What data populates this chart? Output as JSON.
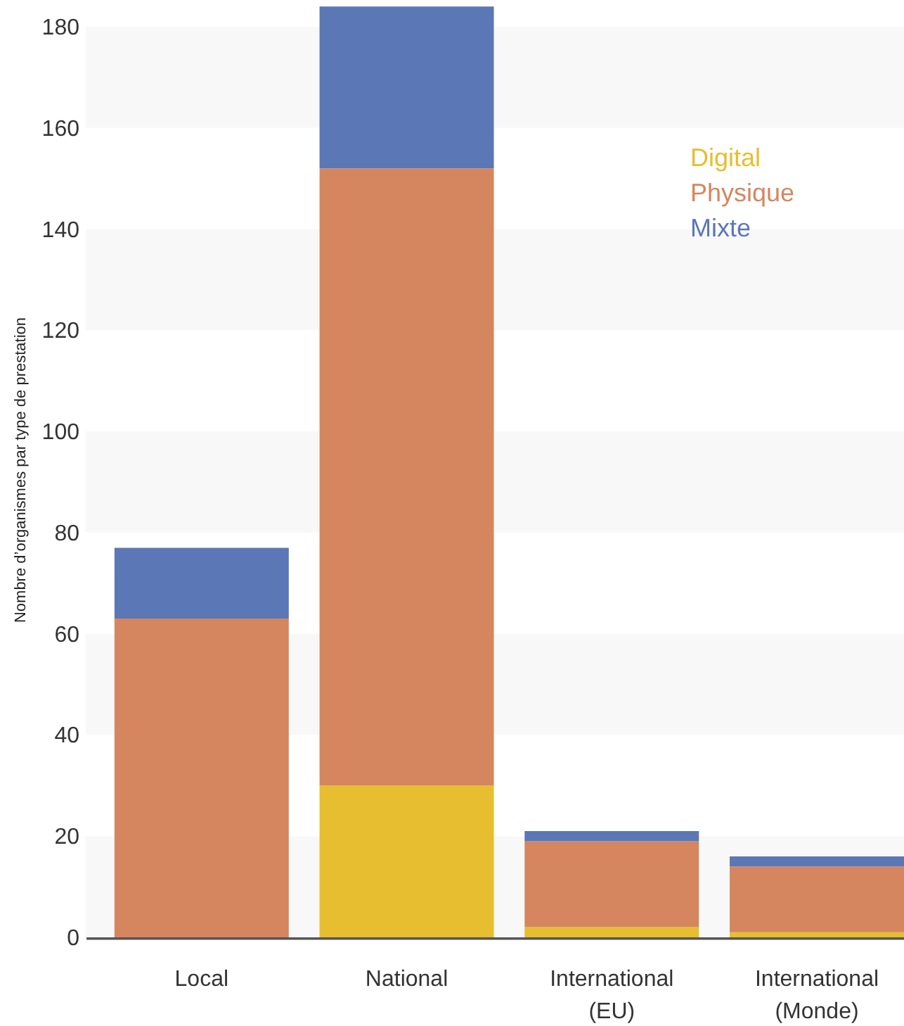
{
  "chart_data": {
    "type": "bar",
    "stacked": true,
    "ylabel": "Nombre d’organismes par type de prestation",
    "categories": [
      "Local",
      "National",
      "International (EU)",
      "International (Monde)"
    ],
    "series": [
      {
        "name": "Digital",
        "color": "#e6be2f",
        "values": [
          0,
          30,
          2,
          1
        ]
      },
      {
        "name": "Physique",
        "color": "#d5865e",
        "values": [
          63,
          122,
          17,
          13
        ]
      },
      {
        "name": "Mixte",
        "color": "#5b77b5",
        "values": [
          14,
          32,
          2,
          2
        ]
      }
    ],
    "ylim": [
      0,
      185
    ],
    "yticks": [
      0,
      20,
      40,
      60,
      80,
      100,
      120,
      140,
      160,
      180
    ],
    "bands": [
      {
        "axis": "y",
        "from": 0,
        "to": 20,
        "color": "#f8f8f8"
      },
      {
        "axis": "y",
        "from": 40,
        "to": 60,
        "color": "#f8f8f8"
      },
      {
        "axis": "y",
        "from": 80,
        "to": 100,
        "color": "#f8f8f8"
      },
      {
        "axis": "y",
        "from": 120,
        "to": 140,
        "color": "#f8f8f8"
      },
      {
        "axis": "y",
        "from": 160,
        "to": 180,
        "color": "#f8f8f8"
      }
    ],
    "legend": "top right"
  }
}
